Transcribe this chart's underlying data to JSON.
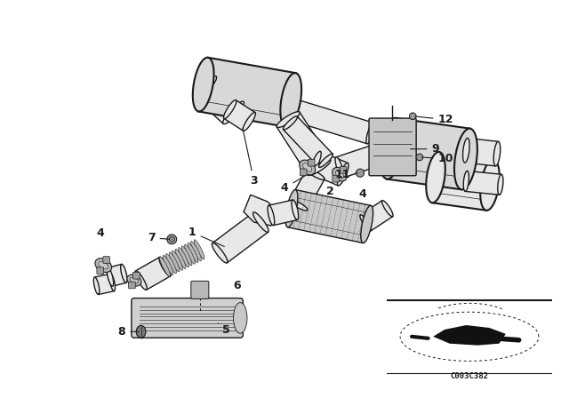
{
  "bg_color": "#ffffff",
  "line_color": "#1a1a1a",
  "fig_width": 6.4,
  "fig_height": 4.48,
  "dpi": 100,
  "watermark": "C003C382",
  "gray_light": "#d8d8d8",
  "gray_mid": "#b8b8b8",
  "gray_dark": "#888888",
  "gray_fill": "#e8e8e8"
}
